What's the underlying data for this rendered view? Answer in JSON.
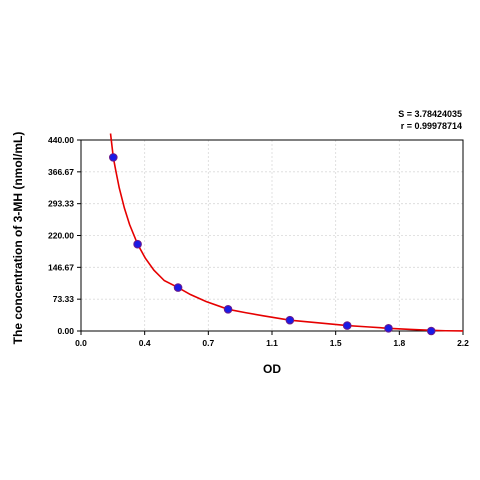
{
  "chart_data": {
    "type": "scatter",
    "xlabel": "OD",
    "ylabel": "The concentration of 3-MH (nmol/mL)",
    "xlim": [
      0.0,
      2.2
    ],
    "ylim": [
      0.0,
      440.0
    ],
    "x_ticks": [
      "0.0",
      "0.4",
      "0.7",
      "1.1",
      "1.5",
      "1.8",
      "2.2"
    ],
    "y_ticks": [
      "0.00",
      "73.33",
      "146.67",
      "220.00",
      "293.33",
      "366.67",
      "440.00"
    ],
    "x_tick_values": [
      0.0,
      0.366667,
      0.733333,
      1.1,
      1.466667,
      1.833333,
      2.2
    ],
    "y_tick_values": [
      0.0,
      73.33,
      146.67,
      220.0,
      293.33,
      366.67,
      440.0
    ],
    "grid": true,
    "stats": {
      "s_line": "S = 3.78424035",
      "r_line": "r = 0.99978714"
    },
    "series": [
      {
        "x": [
          0.186,
          0.326,
          0.559,
          0.847,
          1.203,
          1.533,
          1.771,
          2.017
        ],
        "y": [
          400.0,
          200.0,
          100.0,
          50.0,
          25.0,
          12.5,
          6.25,
          0.0
        ],
        "marker_color": "#1a1ae6",
        "marker_edge": "#6b1a8c"
      }
    ],
    "fit_curve": {
      "x": [
        0.17,
        0.186,
        0.2,
        0.22,
        0.25,
        0.28,
        0.326,
        0.37,
        0.42,
        0.48,
        0.559,
        0.63,
        0.72,
        0.847,
        0.95,
        1.05,
        1.203,
        1.35,
        1.533,
        1.65,
        1.771,
        1.9,
        2.017,
        2.1,
        2.2
      ],
      "y": [
        455.0,
        400.0,
        370.0,
        330.0,
        283.0,
        245.0,
        200.0,
        168.0,
        140.0,
        116.0,
        100.0,
        84.0,
        68.0,
        50.0,
        42.0,
        35.0,
        25.0,
        19.5,
        12.5,
        9.5,
        6.25,
        3.5,
        1.5,
        0.6,
        0.2
      ],
      "color": "#e60000"
    }
  }
}
